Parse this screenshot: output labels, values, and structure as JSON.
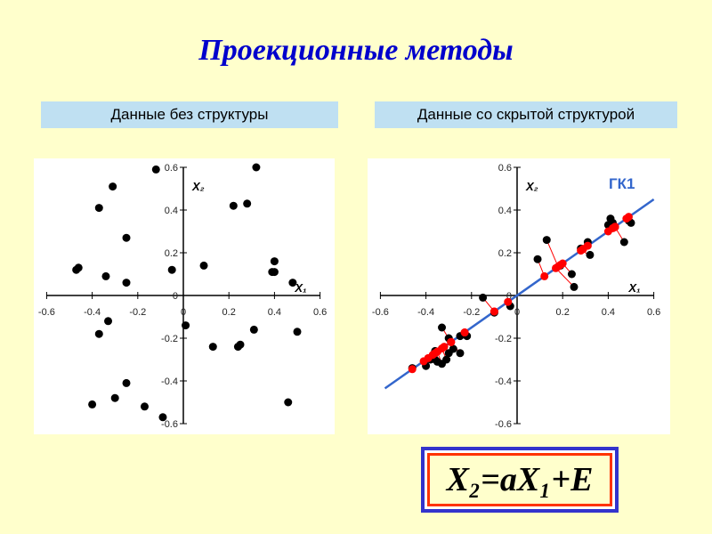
{
  "title": "Проекционные методы",
  "panels": {
    "left_label": "Данные без структуры",
    "right_label": "Данные со скрытой структурой"
  },
  "formula": "X₂=aX₁+E",
  "colors": {
    "title": "#0000cc",
    "points": "#000000",
    "projections": "#ff0000",
    "pc_line": "#3366cc",
    "pc_label": "#3366cc"
  },
  "chart_data": [
    {
      "type": "scatter",
      "title": "",
      "xlabel": "X₁",
      "ylabel": "X₂",
      "xlim": [
        -0.6,
        0.6
      ],
      "ylim": [
        -0.6,
        0.6
      ],
      "xticks": [
        "-0.6",
        "-0.4",
        "-0.2",
        "0",
        "0.2",
        "0.4",
        "0.6"
      ],
      "yticks": [
        "0.6",
        "0.4",
        "0.2",
        "0",
        "-0.2",
        "-0.4",
        "-0.6"
      ],
      "grid": false,
      "series": [
        {
          "points": [
            [
              -0.12,
              0.59
            ],
            [
              0.32,
              0.6
            ],
            [
              -0.31,
              0.51
            ],
            [
              -0.37,
              0.41
            ],
            [
              0.22,
              0.42
            ],
            [
              0.28,
              0.43
            ],
            [
              -0.25,
              0.27
            ],
            [
              -0.46,
              0.13
            ],
            [
              -0.47,
              0.12
            ],
            [
              -0.34,
              0.09
            ],
            [
              -0.25,
              0.06
            ],
            [
              -0.05,
              0.12
            ],
            [
              0.09,
              0.14
            ],
            [
              0.4,
              0.16
            ],
            [
              0.4,
              0.11
            ],
            [
              0.39,
              0.11
            ],
            [
              0.48,
              0.06
            ],
            [
              -0.33,
              -0.12
            ],
            [
              -0.37,
              -0.18
            ],
            [
              0.01,
              -0.14
            ],
            [
              0.13,
              -0.24
            ],
            [
              0.24,
              -0.24
            ],
            [
              0.25,
              -0.23
            ],
            [
              0.31,
              -0.16
            ],
            [
              0.5,
              -0.17
            ],
            [
              -0.25,
              -0.41
            ],
            [
              -0.3,
              -0.48
            ],
            [
              -0.4,
              -0.51
            ],
            [
              -0.17,
              -0.52
            ],
            [
              -0.09,
              -0.57
            ],
            [
              0.46,
              -0.5
            ]
          ]
        }
      ]
    },
    {
      "type": "scatter",
      "title": "",
      "xlabel": "X₁",
      "ylabel": "X₂",
      "xlim": [
        -0.6,
        0.6
      ],
      "ylim": [
        -0.6,
        0.6
      ],
      "xticks": [
        "-0.6",
        "-0.4",
        "-0.2",
        "0",
        "0.2",
        "0.4",
        "0.6"
      ],
      "yticks": [
        "0.6",
        "0.4",
        "0.2",
        "0",
        "-0.2",
        "-0.4",
        "-0.6"
      ],
      "grid": false,
      "line": {
        "label": "ГК1",
        "slope": 0.75,
        "intercept": 0.0,
        "x_range": [
          -0.58,
          0.6
        ]
      },
      "series": [
        {
          "points": [
            [
              0.13,
              0.26
            ],
            [
              0.41,
              0.36
            ],
            [
              0.42,
              0.34
            ],
            [
              0.4,
              0.33
            ],
            [
              0.49,
              0.35
            ],
            [
              0.5,
              0.34
            ],
            [
              0.09,
              0.17
            ],
            [
              0.31,
              0.25
            ],
            [
              0.28,
              0.22
            ],
            [
              0.32,
              0.19
            ],
            [
              0.47,
              0.25
            ],
            [
              0.24,
              0.1
            ],
            [
              0.25,
              0.04
            ],
            [
              0.19,
              0.14
            ],
            [
              -0.03,
              -0.05
            ],
            [
              -0.15,
              -0.01
            ],
            [
              -0.1,
              -0.08
            ],
            [
              -0.33,
              -0.15
            ],
            [
              -0.3,
              -0.2
            ],
            [
              -0.25,
              -0.19
            ],
            [
              -0.22,
              -0.19
            ],
            [
              -0.3,
              -0.27
            ],
            [
              -0.36,
              -0.26
            ],
            [
              -0.38,
              -0.3
            ],
            [
              -0.35,
              -0.31
            ],
            [
              -0.33,
              -0.32
            ],
            [
              -0.25,
              -0.27
            ],
            [
              -0.31,
              -0.3
            ],
            [
              -0.28,
              -0.25
            ],
            [
              -0.36,
              -0.3
            ],
            [
              -0.4,
              -0.33
            ],
            [
              -0.46,
              -0.34
            ]
          ]
        }
      ],
      "projections": [
        [
          0.18,
          0.135
        ],
        [
          0.42,
          0.315
        ],
        [
          0.43,
          0.322
        ],
        [
          0.4,
          0.3
        ],
        [
          0.48,
          0.36
        ],
        [
          0.49,
          0.368
        ],
        [
          0.12,
          0.09
        ],
        [
          0.31,
          0.233
        ],
        [
          0.29,
          0.218
        ],
        [
          0.28,
          0.21
        ],
        [
          0.43,
          0.32
        ],
        [
          0.2,
          0.15
        ],
        [
          0.17,
          0.128
        ],
        [
          0.19,
          0.143
        ],
        [
          -0.04,
          -0.03
        ],
        [
          -0.1,
          -0.075
        ],
        [
          -0.1,
          -0.075
        ],
        [
          -0.29,
          -0.218
        ],
        [
          -0.29,
          -0.218
        ],
        [
          -0.23,
          -0.173
        ],
        [
          -0.23,
          -0.173
        ],
        [
          -0.32,
          -0.24
        ],
        [
          -0.35,
          -0.263
        ],
        [
          -0.39,
          -0.293
        ],
        [
          -0.36,
          -0.27
        ],
        [
          -0.35,
          -0.263
        ],
        [
          -0.29,
          -0.218
        ],
        [
          -0.33,
          -0.248
        ],
        [
          -0.29,
          -0.218
        ],
        [
          -0.37,
          -0.278
        ],
        [
          -0.41,
          -0.308
        ],
        [
          -0.46,
          -0.345
        ]
      ]
    }
  ]
}
